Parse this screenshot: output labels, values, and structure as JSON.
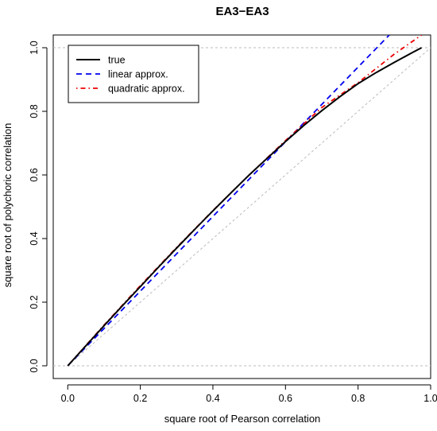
{
  "chart_data": {
    "type": "line",
    "title": "EA3−EA3",
    "xlabel": "square root of Pearson correlation",
    "ylabel": "square root of polychoric correlation",
    "xlim": [
      -0.04,
      1.0
    ],
    "ylim": [
      -0.04,
      1.04
    ],
    "xticks": [
      "0.0",
      "0.2",
      "0.4",
      "0.6",
      "0.8",
      "1.0"
    ],
    "yticks": [
      "0.0",
      "0.2",
      "0.4",
      "0.6",
      "0.8",
      "1.0"
    ],
    "reference_lines": [
      {
        "kind": "horizontal",
        "y": 0,
        "style": "dotted",
        "color": "#bbbbbb"
      },
      {
        "kind": "horizontal",
        "y": 1,
        "style": "dotted",
        "color": "#bbbbbb"
      },
      {
        "kind": "diagonal",
        "from": [
          0,
          0
        ],
        "to": [
          1,
          1
        ],
        "style": "dotted",
        "color": "#bbbbbb"
      }
    ],
    "legend": {
      "placement": "top-left",
      "entries": [
        "true",
        "linear approx.",
        "quadratic approx."
      ]
    },
    "series": [
      {
        "name": "true",
        "color": "#000000",
        "style": "solid",
        "x": [
          0,
          0.05,
          0.1,
          0.15,
          0.2,
          0.25,
          0.3,
          0.35,
          0.4,
          0.45,
          0.5,
          0.55,
          0.6,
          0.65,
          0.7,
          0.75,
          0.8,
          0.85,
          0.9,
          0.95,
          0.975
        ],
        "y": [
          0,
          0.063,
          0.126,
          0.188,
          0.249,
          0.31,
          0.37,
          0.429,
          0.487,
          0.544,
          0.6,
          0.653,
          0.705,
          0.755,
          0.802,
          0.846,
          0.887,
          0.922,
          0.954,
          0.985,
          1.0
        ]
      },
      {
        "name": "linear approx.",
        "color": "#0000ee",
        "style": "dashed",
        "x": [
          0,
          0.886
        ],
        "y": [
          0,
          1.04
        ]
      },
      {
        "name": "quadratic approx.",
        "color": "#ee0000",
        "style": "dotdash",
        "x": [
          0,
          0.1,
          0.2,
          0.3,
          0.4,
          0.5,
          0.6,
          0.7,
          0.8,
          0.9,
          0.975
        ],
        "y": [
          0,
          0.128,
          0.252,
          0.372,
          0.488,
          0.6,
          0.708,
          0.812,
          0.89,
          0.98,
          1.04
        ]
      }
    ]
  }
}
